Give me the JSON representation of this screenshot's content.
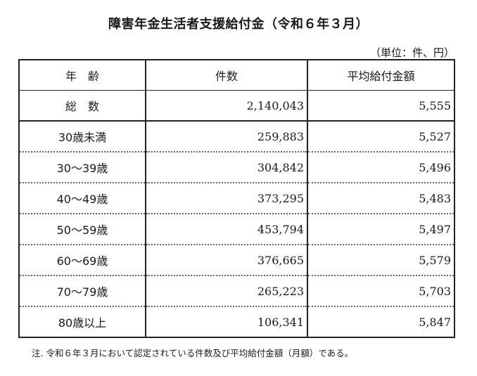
{
  "title": "障害年金生活者支援給付金（令和６年３月）",
  "unit": "（単位：件、円）",
  "table": {
    "headers": [
      "年　齢",
      "件数",
      "平均給付金額"
    ],
    "total": {
      "label": "総　数",
      "count": "2,140,043",
      "average": "5,555"
    },
    "rows": [
      {
        "label": "30歳未満",
        "count": "259,883",
        "average": "5,527"
      },
      {
        "label": "30～39歳",
        "count": "304,842",
        "average": "5,496"
      },
      {
        "label": "40～49歳",
        "count": "373,295",
        "average": "5,483"
      },
      {
        "label": "50～59歳",
        "count": "453,794",
        "average": "5,497"
      },
      {
        "label": "60～69歳",
        "count": "376,665",
        "average": "5,579"
      },
      {
        "label": "70～79歳",
        "count": "265,223",
        "average": "5,703"
      },
      {
        "label": "80歳以上",
        "count": "106,341",
        "average": "5,847"
      }
    ]
  },
  "note": "注. 令和６年３月において認定されている件数及び平均給付金額（月額）である。"
}
